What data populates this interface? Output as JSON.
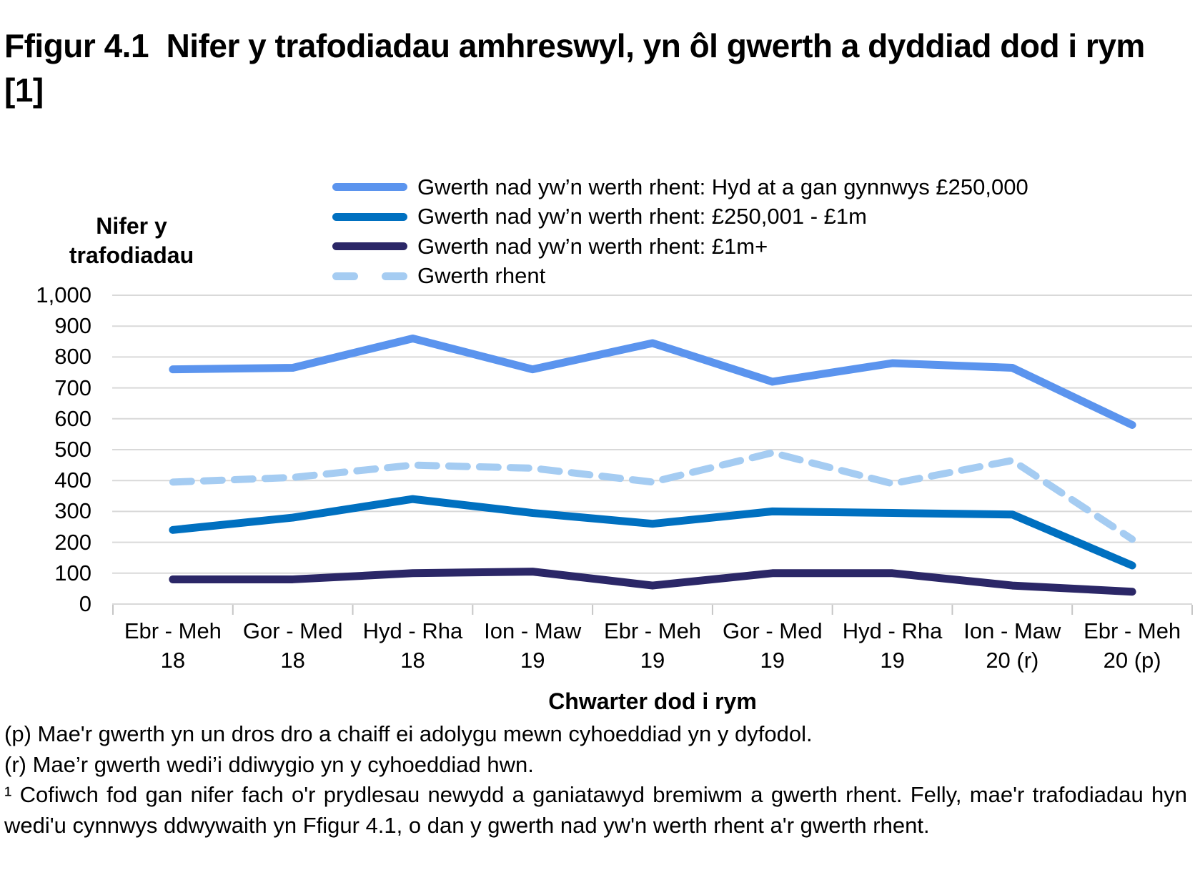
{
  "title": "Ffigur 4.1  Nifer y trafodiadau amhreswyl, yn ôl gwerth a dyddiad dod i rym [1]",
  "chart_data": {
    "type": "line",
    "title": "Ffigur 4.1 Nifer y trafodiadau amhreswyl, yn ôl gwerth a dyddiad dod i rym [1]",
    "ylabel": "Nifer y trafodiadau",
    "xlabel": "Chwarter dod i rym",
    "ylim": [
      0,
      1000
    ],
    "ytick_step": 100,
    "ytick_top_label": "1,000",
    "grid": "horizontal",
    "legend_position": "top",
    "categories": [
      {
        "quarter": "Ebr - Meh",
        "year": "18"
      },
      {
        "quarter": "Gor - Med",
        "year": "18"
      },
      {
        "quarter": "Hyd - Rha",
        "year": "18"
      },
      {
        "quarter": "Ion - Maw",
        "year": "19"
      },
      {
        "quarter": "Ebr - Meh",
        "year": "19"
      },
      {
        "quarter": "Gor - Med",
        "year": "19"
      },
      {
        "quarter": "Hyd - Rha",
        "year": "19"
      },
      {
        "quarter": "Ion - Maw",
        "year": "20 (r)"
      },
      {
        "quarter": "Ebr - Meh",
        "year": "20 (p)"
      }
    ],
    "series": [
      {
        "name": "Gwerth nad yw’n werth rhent: Hyd at a gan gynnwys £250,000",
        "color": "#5B94EE",
        "dash": false,
        "values": [
          760,
          765,
          860,
          760,
          845,
          720,
          780,
          765,
          580
        ]
      },
      {
        "name": "Gwerth nad yw’n werth rhent: £250,001 - £1m",
        "color": "#0070C0",
        "dash": false,
        "values": [
          240,
          280,
          340,
          295,
          260,
          300,
          295,
          290,
          125
        ]
      },
      {
        "name": "Gwerth nad yw’n werth rhent: £1m+",
        "color": "#2B2767",
        "dash": false,
        "values": [
          80,
          80,
          100,
          105,
          60,
          100,
          100,
          60,
          40
        ]
      },
      {
        "name": "Gwerth rhent",
        "color": "#A5CCF2",
        "dash": true,
        "values": [
          395,
          410,
          450,
          440,
          395,
          490,
          390,
          465,
          210
        ]
      }
    ]
  },
  "footnotes": [
    "(p) Mae'r gwerth yn un dros dro a chaiff ei adolygu mewn cyhoeddiad yn y dyfodol.",
    "(r) Mae’r gwerth wedi’i ddiwygio yn y cyhoeddiad hwn.",
    "¹ Cofiwch fod gan nifer fach o'r prydlesau newydd a ganiatawyd bremiwm a gwerth rhent. Felly, mae'r trafodiadau hyn wedi'u cynnwys ddwywaith yn Ffigur 4.1, o dan y gwerth nad yw'n werth rhent a'r gwerth rhent."
  ],
  "colors": {
    "gridline": "#D9D9D9",
    "tick_mark": "#C6C6C6",
    "text": "#000000"
  }
}
